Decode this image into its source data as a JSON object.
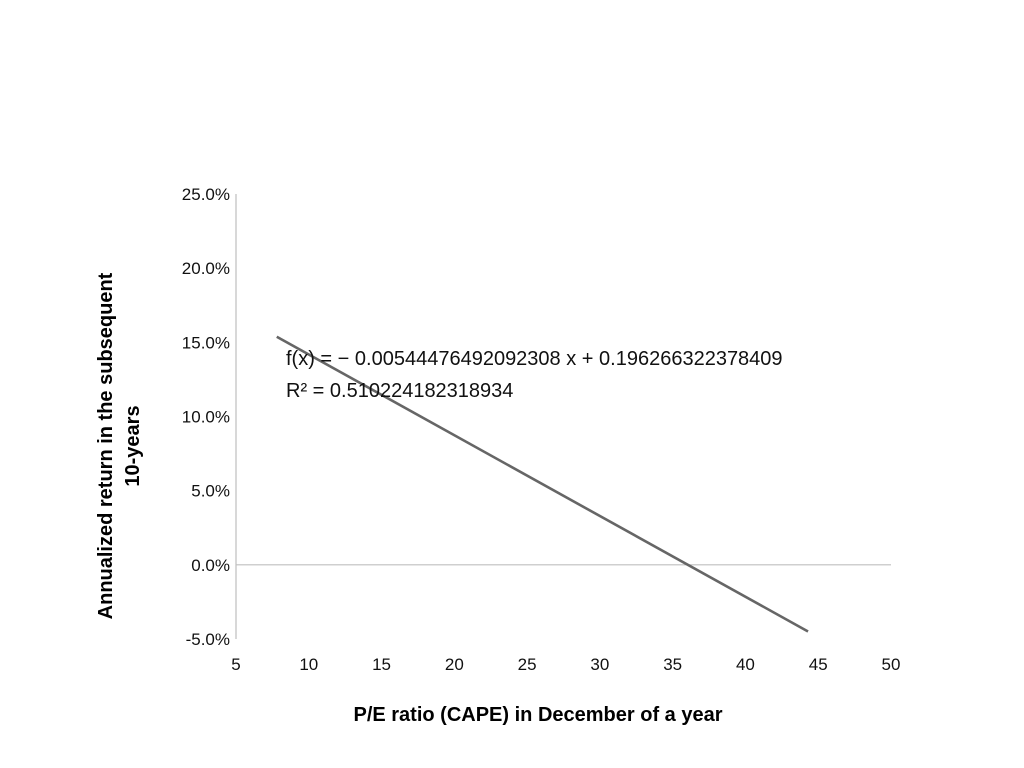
{
  "chart_data": {
    "type": "scatter",
    "title": "",
    "xlabel": "P/E ratio (CAPE) in December of a year",
    "ylabel_lines": [
      "Annualized return in the subsequent",
      "10-years"
    ],
    "xlim": [
      5,
      50
    ],
    "ylim": [
      -0.05,
      0.25
    ],
    "x_ticks": [
      5,
      10,
      15,
      20,
      25,
      30,
      35,
      40,
      45,
      50
    ],
    "x_tick_labels": [
      "5",
      "10",
      "15",
      "20",
      "25",
      "30",
      "35",
      "40",
      "45",
      "50"
    ],
    "y_ticks": [
      -0.05,
      0,
      0.05,
      0.1,
      0.15,
      0.2,
      0.25
    ],
    "y_tick_labels": [
      "-5.0%",
      "0.0%",
      "5.0%",
      "10.0%",
      "15.0%",
      "20.0%",
      "25.0%"
    ],
    "trendline": {
      "x_range": [
        7.8,
        44.3
      ],
      "slope": -0.00544476492092308,
      "intercept": 0.196266322378409,
      "equation": "f(x) = − 0.00544476492092308 x + 0.196266322378409",
      "r_squared_text": "R² = 0.510224182318934"
    },
    "grid": false,
    "colors": {
      "trendline": "#666666",
      "axis": "#bfbfbf"
    }
  }
}
